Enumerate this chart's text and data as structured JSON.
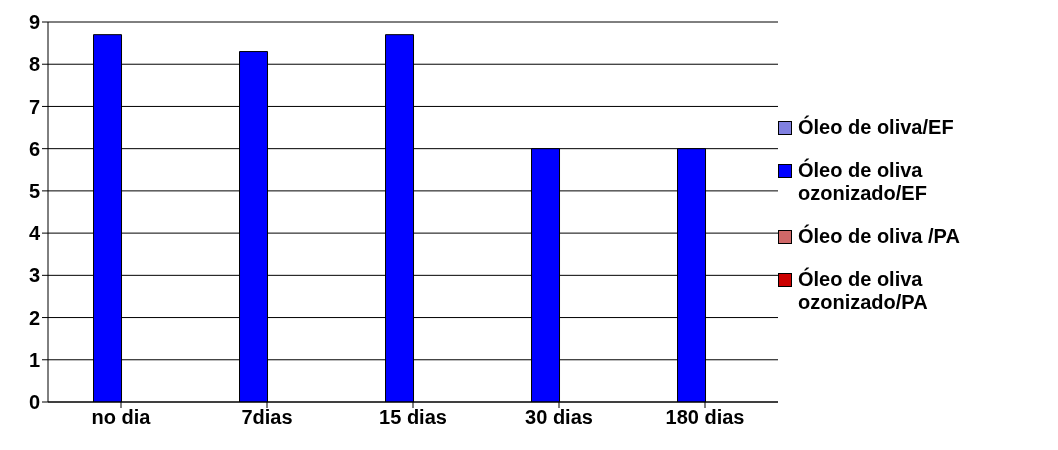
{
  "chart_data": {
    "type": "bar",
    "categories": [
      "no dia",
      "7dias",
      "15 dias",
      "30 dias",
      "180 dias"
    ],
    "series": [
      {
        "name": "Óleo de oliva/EF",
        "color": "#8080e0",
        "values": [
          0,
          0,
          0,
          0,
          0
        ]
      },
      {
        "name": "Óleo de oliva ozonizado/EF",
        "color": "#0000ff",
        "values": [
          8.7,
          8.3,
          8.7,
          6.0,
          6.0
        ]
      },
      {
        "name": "Óleo de oliva /PA",
        "color": "#d06868",
        "values": [
          0,
          0,
          0,
          0,
          0
        ]
      },
      {
        "name": "Óleo de oliva ozonizado/PA",
        "color": "#cc0000",
        "values": [
          0,
          0,
          0,
          0,
          0
        ]
      }
    ],
    "ylim": [
      0,
      9
    ],
    "yticks": [
      0,
      1,
      2,
      3,
      4,
      5,
      6,
      7,
      8,
      9
    ],
    "grid": "y",
    "legend": "right"
  }
}
